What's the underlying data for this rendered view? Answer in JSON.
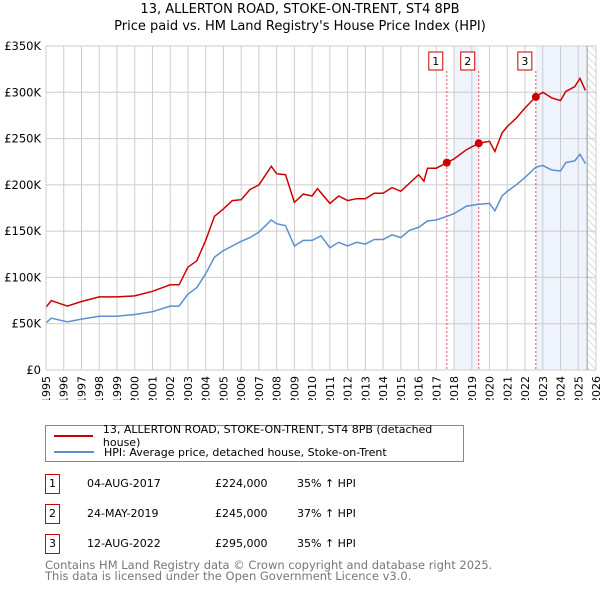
{
  "title_line1": "13, ALLERTON ROAD, STOKE-ON-TRENT, ST4 8PB",
  "title_line2": "Price paid vs. HM Land Registry's House Price Index (HPI)",
  "colors": {
    "property": "#cc0000",
    "hpi": "#5b8fd0",
    "grid": "#cccccc",
    "shade": "#eef3fc"
  },
  "chart_data": {
    "type": "line",
    "title": "13, ALLERTON ROAD, STOKE-ON-TRENT, ST4 8PB — Price paid vs. HM Land Registry's House Price Index (HPI)",
    "xlim": [
      1995,
      2026
    ],
    "ylim": [
      0,
      350000
    ],
    "y_ticks": [
      0,
      50000,
      100000,
      150000,
      200000,
      250000,
      300000,
      350000
    ],
    "y_tick_labels": [
      "£0",
      "£50K",
      "£100K",
      "£150K",
      "£200K",
      "£250K",
      "£300K",
      "£350K"
    ],
    "x_ticks": [
      1995,
      1996,
      1997,
      1998,
      1999,
      2000,
      2001,
      2002,
      2003,
      2004,
      2005,
      2006,
      2007,
      2008,
      2009,
      2010,
      2011,
      2012,
      2013,
      2014,
      2015,
      2016,
      2017,
      2018,
      2019,
      2020,
      2021,
      2022,
      2023,
      2024,
      2025,
      2026
    ],
    "grid": true,
    "legend_placement": "below",
    "shaded_ranges": [
      [
        2018.0,
        2019.4
      ],
      [
        2022.6,
        2025.5
      ]
    ],
    "future_hatch_from": 2025.5,
    "series": [
      {
        "name": "13, ALLERTON ROAD, STOKE-ON-TRENT, ST4 8PB (detached house)",
        "key": "property",
        "x": [
          1995,
          1995.3,
          1996.2,
          1997,
          1998,
          1999,
          2000,
          2001,
          2002,
          2002.5,
          2003,
          2003.5,
          2004,
          2004.5,
          2005,
          2005.5,
          2006,
          2006.5,
          2007,
          2007.7,
          2008,
          2008.5,
          2009,
          2009.5,
          2010,
          2010.3,
          2011,
          2011.5,
          2012,
          2012.5,
          2013,
          2013.5,
          2014,
          2014.5,
          2015,
          2015.5,
          2016,
          2016.3,
          2016.5,
          2017,
          2017.6,
          2018,
          2018.7,
          2019.4,
          2020,
          2020.3,
          2020.7,
          2021,
          2021.5,
          2022,
          2022.6,
          2023,
          2023.5,
          2024,
          2024.3,
          2024.8,
          2025.1,
          2025.4
        ],
        "y": [
          68000,
          75000,
          69000,
          74000,
          79000,
          79000,
          80000,
          85000,
          92000,
          92000,
          111000,
          118000,
          140000,
          166000,
          174000,
          183000,
          184000,
          195000,
          200000,
          220000,
          212000,
          211000,
          181000,
          190000,
          188000,
          196000,
          180000,
          188000,
          183000,
          185000,
          185000,
          191000,
          191000,
          197000,
          193000,
          202000,
          211000,
          204000,
          218000,
          218000,
          224000,
          228000,
          238000,
          245000,
          247000,
          236000,
          256000,
          263000,
          272000,
          283000,
          295000,
          300000,
          294000,
          291000,
          301000,
          306000,
          315000,
          302000
        ]
      },
      {
        "name": "HPI: Average price, detached house, Stoke-on-Trent",
        "key": "hpi",
        "x": [
          1995,
          1995.3,
          1996.2,
          1997,
          1998,
          1999,
          2000,
          2001,
          2002,
          2002.5,
          2003,
          2003.5,
          2004,
          2004.5,
          2005,
          2005.5,
          2006,
          2006.5,
          2007,
          2007.7,
          2008,
          2008.5,
          2009,
          2009.5,
          2010,
          2010.5,
          2011,
          2011.5,
          2012,
          2012.5,
          2013,
          2013.5,
          2014,
          2014.5,
          2015,
          2015.5,
          2016,
          2016.5,
          2017,
          2017.6,
          2018,
          2018.7,
          2019.4,
          2020,
          2020.3,
          2020.7,
          2021,
          2021.5,
          2022,
          2022.6,
          2023,
          2023.5,
          2024,
          2024.3,
          2024.8,
          2025.1,
          2025.4
        ],
        "y": [
          51000,
          56000,
          52000,
          55000,
          58000,
          58000,
          60000,
          63000,
          69000,
          69000,
          82000,
          89000,
          104000,
          122000,
          129000,
          134000,
          139000,
          143000,
          149000,
          162000,
          158000,
          156000,
          134000,
          140000,
          140000,
          145000,
          132000,
          138000,
          134000,
          138000,
          136000,
          141000,
          141000,
          146000,
          143000,
          151000,
          154000,
          161000,
          162000,
          166000,
          169000,
          177000,
          179000,
          180000,
          172000,
          188000,
          193000,
          200000,
          208000,
          219000,
          221000,
          216000,
          215000,
          224000,
          226000,
          233000,
          223000
        ]
      }
    ],
    "sales": [
      {
        "n": "1",
        "x": 2017.59,
        "y": 224000
      },
      {
        "n": "2",
        "x": 2019.39,
        "y": 245000
      },
      {
        "n": "3",
        "x": 2022.61,
        "y": 295000
      }
    ]
  },
  "legend": {
    "property": "13, ALLERTON ROAD, STOKE-ON-TRENT, ST4 8PB (detached house)",
    "hpi": "HPI: Average price, detached house, Stoke-on-Trent"
  },
  "transactions": [
    {
      "n": "1",
      "date": "04-AUG-2017",
      "price": "£224,000",
      "hpi": "35% ↑ HPI"
    },
    {
      "n": "2",
      "date": "24-MAY-2019",
      "price": "£245,000",
      "hpi": "37% ↑ HPI"
    },
    {
      "n": "3",
      "date": "12-AUG-2022",
      "price": "£295,000",
      "hpi": "35% ↑ HPI"
    }
  ],
  "footer": {
    "line1": "Contains HM Land Registry data © Crown copyright and database right 2025.",
    "line2": "This data is licensed under the Open Government Licence v3.0."
  }
}
